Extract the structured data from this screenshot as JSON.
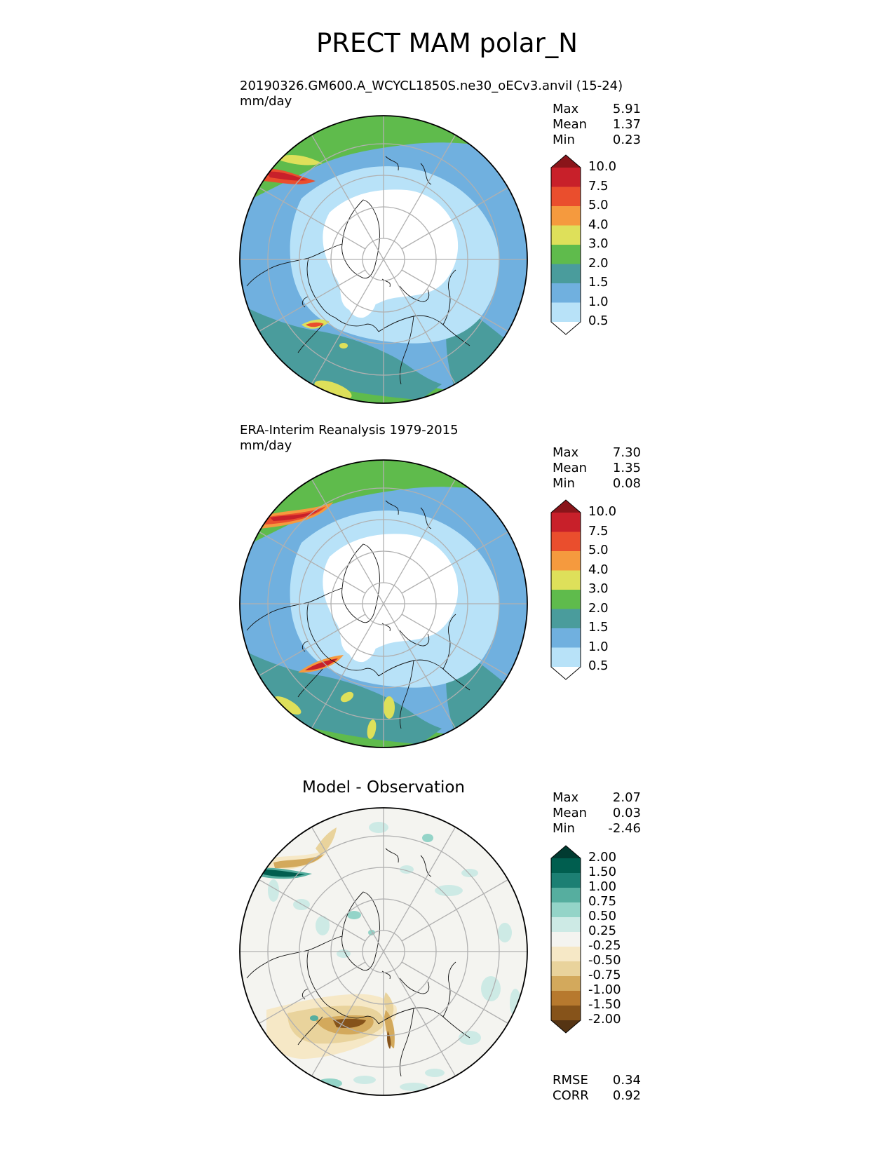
{
  "title": "PRECT MAM polar_N",
  "panels": [
    {
      "label_line1": "20190326.GM600.A_WCYCL1850S.ne30_oECv3.anvil (15-24)",
      "label_line2": "mm/day",
      "stats": [
        {
          "name": "Max",
          "value": "5.91"
        },
        {
          "name": "Mean",
          "value": "1.37"
        },
        {
          "name": "Min",
          "value": "0.23"
        }
      ]
    },
    {
      "label_line1": "ERA-Interim Reanalysis 1979-2015",
      "label_line2": "mm/day",
      "stats": [
        {
          "name": "Max",
          "value": "7.30"
        },
        {
          "name": "Mean",
          "value": "1.35"
        },
        {
          "name": "Min",
          "value": "0.08"
        }
      ]
    },
    {
      "title": "Model - Observation",
      "stats": [
        {
          "name": "Max",
          "value": "2.07"
        },
        {
          "name": "Mean",
          "value": "0.03"
        },
        {
          "name": "Min",
          "value": "-2.46"
        }
      ],
      "metrics": [
        {
          "name": "RMSE",
          "value": "0.34"
        },
        {
          "name": "CORR",
          "value": "0.92"
        }
      ]
    }
  ],
  "colorbars": {
    "precip": {
      "colors": [
        "#ffffff",
        "#b8e2f8",
        "#70b0df",
        "#4a9c9c",
        "#5fbb4c",
        "#dee05a",
        "#f59a3e",
        "#ea4e2d",
        "#c8202a",
        "#8a151a"
      ],
      "ticks": [
        "0.5",
        "1.0",
        "1.5",
        "2.0",
        "3.0",
        "4.0",
        "5.0",
        "7.5",
        "10.0"
      ]
    },
    "diff": {
      "colors": [
        "#553413",
        "#86531a",
        "#b7792e",
        "#d3a95c",
        "#e9d39c",
        "#f6e8c6",
        "#f4f4f0",
        "#cdeae5",
        "#94d4c8",
        "#56ae9f",
        "#1c7f73",
        "#005e4f",
        "#013b31"
      ],
      "ticks": [
        "-2.00",
        "-1.50",
        "-1.00",
        "-0.75",
        "-0.50",
        "-0.25",
        "0.25",
        "0.50",
        "0.75",
        "1.00",
        "1.50",
        "2.00"
      ]
    }
  },
  "chart_data": [
    {
      "type": "heatmap",
      "title": "20190326.GM600.A_WCYCL1850S.ne30_oECv3.anvil (15-24)",
      "units": "mm/day",
      "projection": "north polar stereographic",
      "levels": [
        0.5,
        1.0,
        1.5,
        2.0,
        3.0,
        4.0,
        5.0,
        7.5,
        10.0
      ],
      "max": 5.91,
      "mean": 1.37,
      "min": 0.23
    },
    {
      "type": "heatmap",
      "title": "ERA-Interim Reanalysis 1979-2015",
      "units": "mm/day",
      "projection": "north polar stereographic",
      "levels": [
        0.5,
        1.0,
        1.5,
        2.0,
        3.0,
        4.0,
        5.0,
        7.5,
        10.0
      ],
      "max": 7.3,
      "mean": 1.35,
      "min": 0.08
    },
    {
      "type": "heatmap",
      "title": "Model - Observation",
      "projection": "north polar stereographic",
      "levels": [
        -2.0,
        -1.5,
        -1.0,
        -0.75,
        -0.5,
        -0.25,
        0.25,
        0.5,
        0.75,
        1.0,
        1.5,
        2.0
      ],
      "max": 2.07,
      "mean": 0.03,
      "min": -2.46,
      "rmse": 0.34,
      "corr": 0.92
    }
  ]
}
